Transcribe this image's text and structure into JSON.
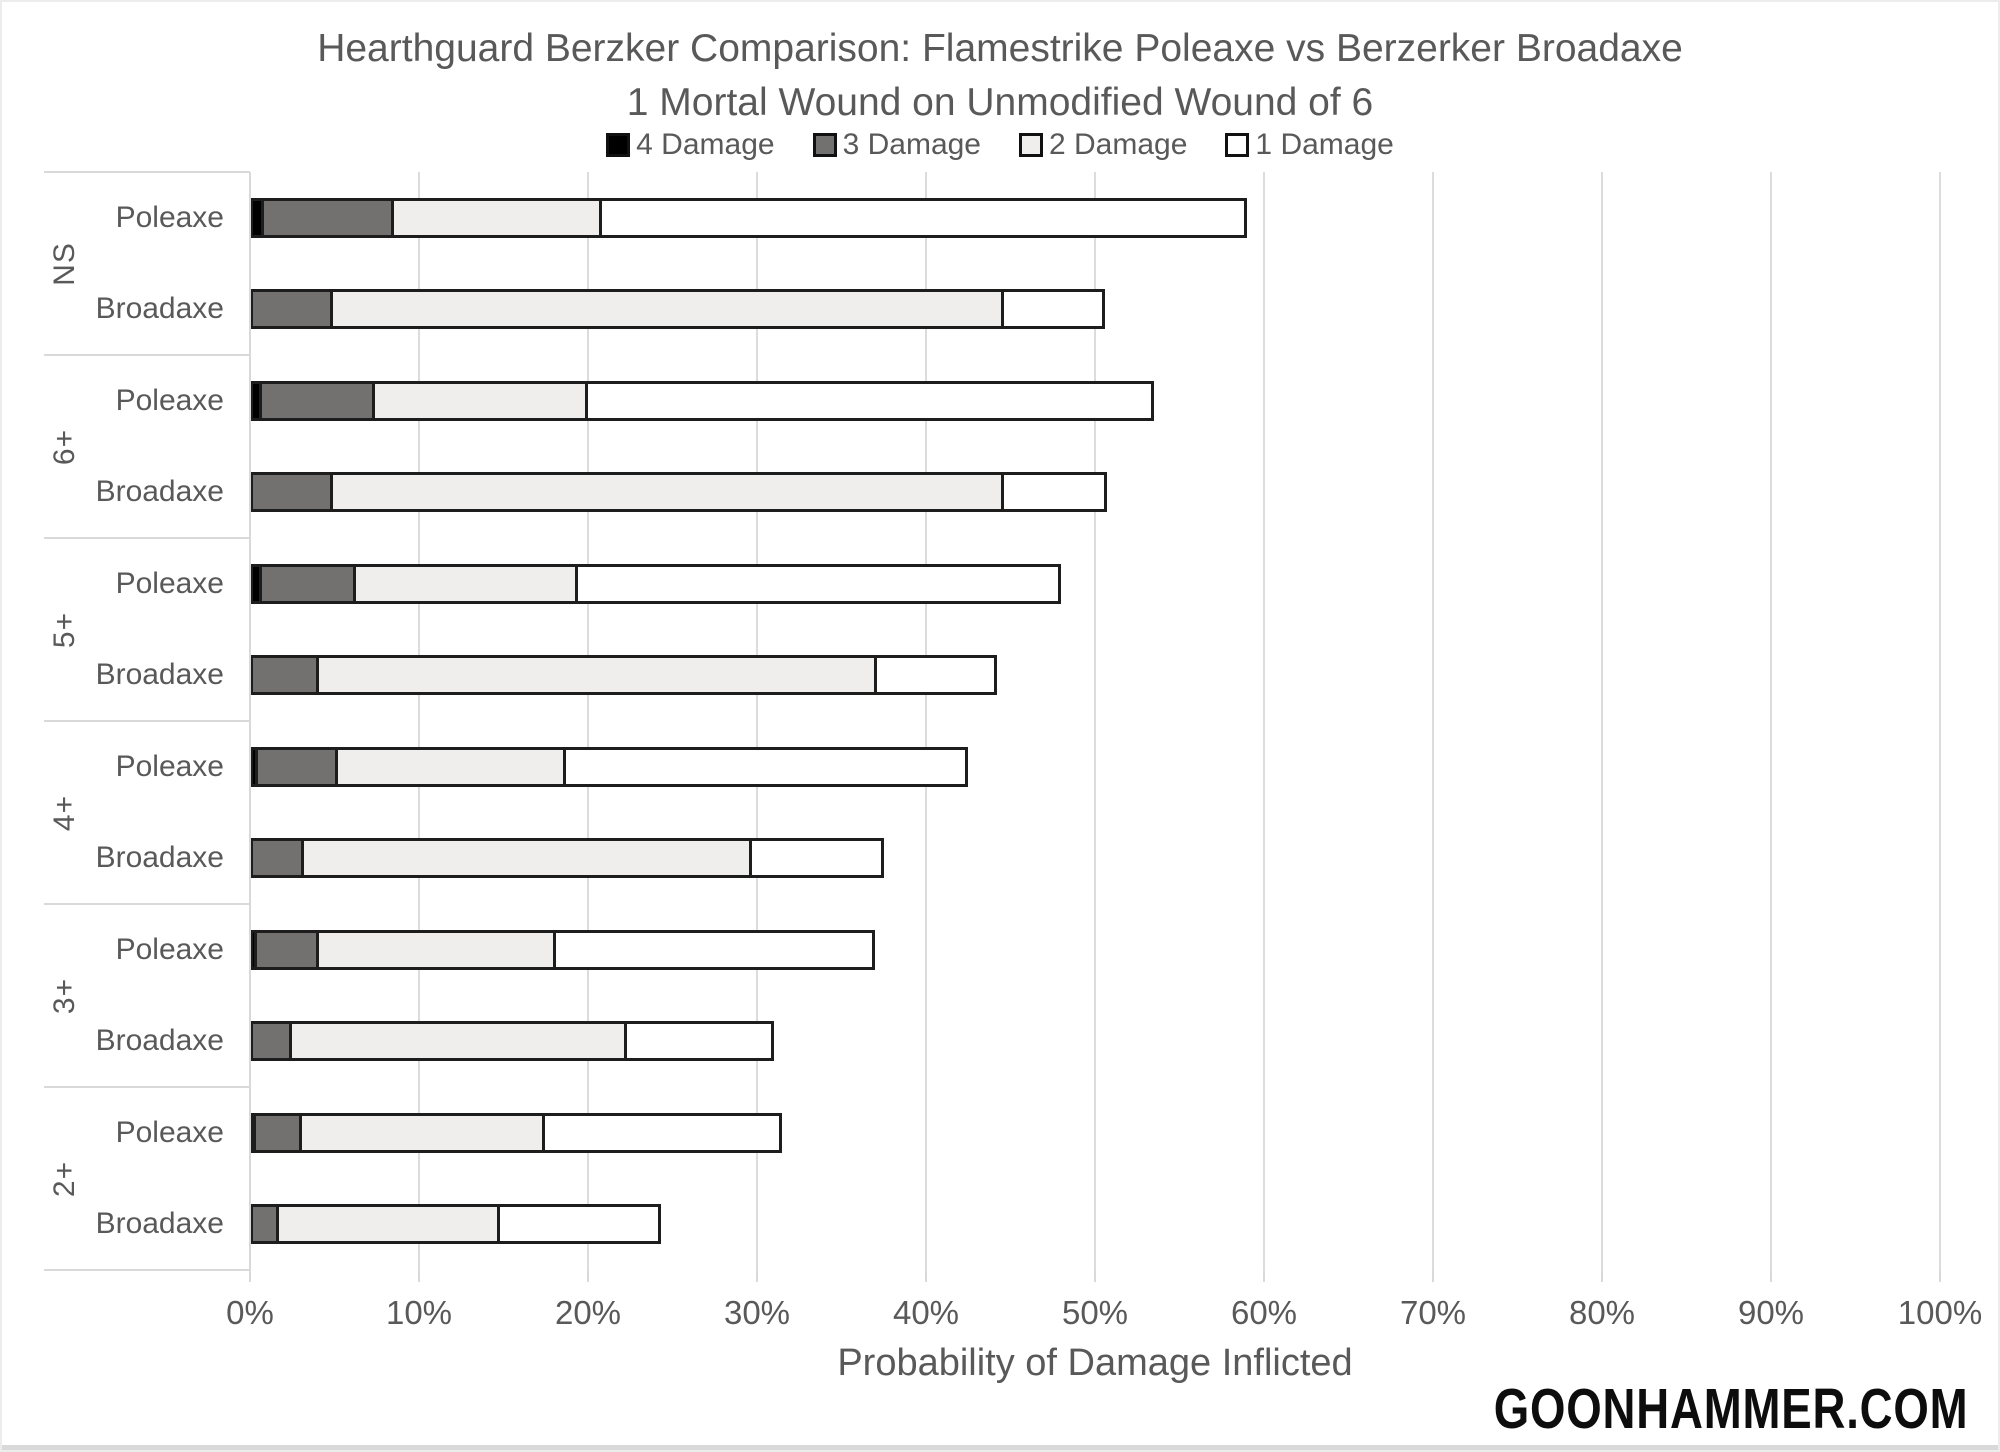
{
  "watermark": "GOONHAMMER.COM",
  "chart_data": {
    "type": "bar",
    "orientation": "horizontal",
    "stacked": true,
    "grid": true,
    "legend_position": "top",
    "title": "Hearthguard Berzker Comparison: Flamestrike Poleaxe vs Berzerker Broadaxe",
    "subtitle": "1 Mortal Wound on Unmodified Wound of 6",
    "xlabel": "Probability of Damage Inflicted",
    "xlim": [
      0,
      100
    ],
    "x_ticks": [
      "0%",
      "10%",
      "20%",
      "30%",
      "40%",
      "50%",
      "60%",
      "70%",
      "80%",
      "90%",
      "100%"
    ],
    "legend": [
      {
        "label": "4 Damage",
        "color": "#000000"
      },
      {
        "label": "3 Damage",
        "color": "#737070"
      },
      {
        "label": "2 Damage",
        "color": "#efeeec"
      },
      {
        "label": "1 Damage",
        "color": "#ffffff"
      }
    ],
    "series_order": [
      "4 Damage",
      "3 Damage",
      "2 Damage",
      "1 Damage"
    ],
    "colors": {
      "segment_border": "#1d1d1d",
      "gridline": "#d9d9d9",
      "text": "#595959"
    },
    "groups": [
      {
        "save": "NS",
        "bars": [
          {
            "weapon": "Poleaxe",
            "segments": {
              "4 Damage": 0.8,
              "3 Damage": 7.7,
              "2 Damage": 12.3,
              "1 Damage": 38.2
            },
            "total": 59.0
          },
          {
            "weapon": "Broadaxe",
            "segments": {
              "4 Damage": 0,
              "3 Damage": 4.9,
              "2 Damage": 39.7,
              "1 Damage": 6.0
            },
            "total": 50.6
          }
        ]
      },
      {
        "save": "6+",
        "bars": [
          {
            "weapon": "Poleaxe",
            "segments": {
              "4 Damage": 0.7,
              "3 Damage": 6.7,
              "2 Damage": 12.6,
              "1 Damage": 33.5
            },
            "total": 53.5
          },
          {
            "weapon": "Broadaxe",
            "segments": {
              "4 Damage": 0,
              "3 Damage": 4.9,
              "2 Damage": 39.7,
              "1 Damage": 6.1
            },
            "total": 50.7
          }
        ]
      },
      {
        "save": "5+",
        "bars": [
          {
            "weapon": "Poleaxe",
            "segments": {
              "4 Damage": 0.7,
              "3 Damage": 5.6,
              "2 Damage": 13.1,
              "1 Damage": 28.6
            },
            "total": 48.0
          },
          {
            "weapon": "Broadaxe",
            "segments": {
              "4 Damage": 0,
              "3 Damage": 4.1,
              "2 Damage": 33.0,
              "1 Damage": 7.1
            },
            "total": 44.2
          }
        ]
      },
      {
        "save": "4+",
        "bars": [
          {
            "weapon": "Poleaxe",
            "segments": {
              "4 Damage": 0.5,
              "3 Damage": 4.7,
              "2 Damage": 13.5,
              "1 Damage": 23.8
            },
            "total": 42.5
          },
          {
            "weapon": "Broadaxe",
            "segments": {
              "4 Damage": 0,
              "3 Damage": 3.2,
              "2 Damage": 26.5,
              "1 Damage": 7.8
            },
            "total": 37.5
          }
        ]
      },
      {
        "save": "3+",
        "bars": [
          {
            "weapon": "Poleaxe",
            "segments": {
              "4 Damage": 0.4,
              "3 Damage": 3.7,
              "2 Damage": 14.0,
              "1 Damage": 18.9
            },
            "total": 37.0
          },
          {
            "weapon": "Broadaxe",
            "segments": {
              "4 Damage": 0,
              "3 Damage": 2.5,
              "2 Damage": 19.8,
              "1 Damage": 8.7
            },
            "total": 31.0
          }
        ]
      },
      {
        "save": "2+",
        "bars": [
          {
            "weapon": "Poleaxe",
            "segments": {
              "4 Damage": 0.3,
              "3 Damage": 2.7,
              "2 Damage": 14.4,
              "1 Damage": 14.0
            },
            "total": 31.4
          },
          {
            "weapon": "Broadaxe",
            "segments": {
              "4 Damage": 0,
              "3 Damage": 1.7,
              "2 Damage": 13.1,
              "1 Damage": 9.5
            },
            "total": 24.3
          }
        ]
      }
    ]
  }
}
